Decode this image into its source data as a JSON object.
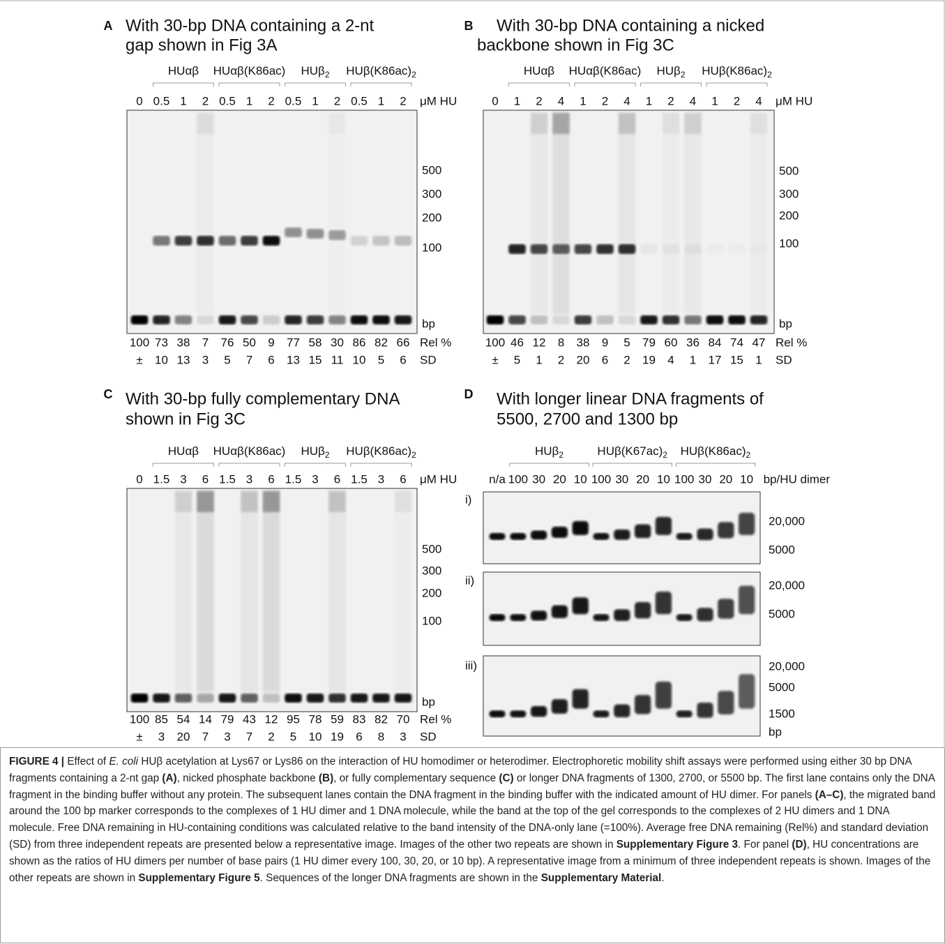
{
  "panels": [
    {
      "letter": "A",
      "title": [
        "With 30-bp DNA containing a 2-nt",
        "gap shown in Fig 3A"
      ],
      "groups": [
        {
          "label": "HUαβ"
        },
        {
          "label": "HUαβ(K86ac)"
        },
        {
          "label": "HUβ",
          "sub": "2"
        },
        {
          "label": "HUβ(K86ac)",
          "sub": "2"
        }
      ],
      "lanes": [
        0,
        0.5,
        1,
        2,
        0.5,
        1,
        2,
        0.5,
        1,
        2,
        0.5,
        1,
        2
      ],
      "unit": "μM HU",
      "markers": [
        "500",
        "300",
        "200",
        "100",
        "bp"
      ],
      "rel_label": "Rel %",
      "rel": [
        100,
        73,
        38,
        7,
        76,
        50,
        9,
        77,
        58,
        30,
        86,
        82,
        66
      ],
      "sd_label": "SD",
      "sd": [
        "±",
        10,
        13,
        3,
        5,
        7,
        6,
        13,
        15,
        11,
        10,
        5,
        6
      ]
    },
    {
      "letter": "B",
      "title": [
        "With 30-bp DNA containing a nicked",
        "backbone shown in Fig 3C"
      ],
      "groups": [
        {
          "label": "HUαβ"
        },
        {
          "label": "HUαβ(K86ac)"
        },
        {
          "label": "HUβ",
          "sub": "2"
        },
        {
          "label": "HUβ(K86ac)",
          "sub": "2"
        }
      ],
      "lanes": [
        0,
        1,
        2,
        4,
        1,
        2,
        4,
        1,
        2,
        4,
        1,
        2,
        4
      ],
      "unit": "μM HU",
      "markers": [
        "500",
        "300",
        "200",
        "100",
        "bp"
      ],
      "rel_label": "Rel %",
      "rel": [
        100,
        46,
        12,
        8,
        38,
        9,
        5,
        79,
        60,
        36,
        84,
        74,
        47
      ],
      "sd_label": "SD",
      "sd": [
        "±",
        5,
        1,
        2,
        20,
        6,
        2,
        19,
        4,
        1,
        17,
        15,
        1
      ]
    },
    {
      "letter": "C",
      "title": [
        "With 30-bp fully complementary DNA",
        "shown in Fig 3C"
      ],
      "groups": [
        {
          "label": "HUαβ"
        },
        {
          "label": "HUαβ(K86ac)"
        },
        {
          "label": "HUβ",
          "sub": "2"
        },
        {
          "label": "HUβ(K86ac)",
          "sub": "2"
        }
      ],
      "lanes": [
        0,
        1.5,
        3,
        6,
        1.5,
        3,
        6,
        1.5,
        3,
        6,
        1.5,
        3,
        6
      ],
      "unit": "μM HU",
      "markers": [
        "500",
        "300",
        "200",
        "100",
        "bp"
      ],
      "rel_label": "Rel %",
      "rel": [
        100,
        85,
        54,
        14,
        79,
        43,
        12,
        95,
        78,
        59,
        83,
        82,
        70
      ],
      "sd_label": "SD",
      "sd": [
        "±",
        3,
        20,
        7,
        3,
        7,
        2,
        5,
        10,
        19,
        6,
        8,
        3
      ]
    },
    {
      "letter": "D",
      "title": [
        "With longer linear DNA fragments of",
        "5500, 2700 and 1300 bp"
      ],
      "groups": [
        {
          "label": "HUβ",
          "sub": "2"
        },
        {
          "label": "HUβ(K67ac)",
          "sub": "2"
        },
        {
          "label": "HUβ(K86ac)",
          "sub": "2"
        }
      ],
      "lanes": [
        "n/a",
        100,
        30,
        20,
        10,
        100,
        30,
        20,
        10,
        100,
        30,
        20,
        10
      ],
      "unit": "bp/HU dimer",
      "gels": [
        {
          "label": "i)",
          "markers": [
            "20,000",
            "5000"
          ]
        },
        {
          "label": "ii)",
          "markers": [
            "20,000",
            "5000"
          ]
        },
        {
          "label": "iii)",
          "markers": [
            "20,000",
            "5000",
            "1500",
            "bp"
          ]
        }
      ]
    }
  ],
  "caption": [
    {
      "text": "FIGURE 4 | ",
      "style": "bold"
    },
    {
      "text": "Effect of "
    },
    {
      "text": "E. coli",
      "style": "italic"
    },
    {
      "text": " HUβ acetylation at Lys67 or Lys86 on the interaction of HU homodimer or heterodimer. Electrophoretic mobility shift assays were performed using either 30 bp DNA fragments containing a 2-nt gap "
    },
    {
      "text": "(A)",
      "style": "bold"
    },
    {
      "text": ", nicked phosphate backbone "
    },
    {
      "text": "(B)",
      "style": "bold"
    },
    {
      "text": ", or fully complementary sequence "
    },
    {
      "text": "(C)",
      "style": "bold"
    },
    {
      "text": " or longer DNA fragments of 1300, 2700, or 5500 bp. The first lane contains only the DNA fragment in the binding buffer without any protein. The subsequent lanes contain the DNA fragment in the binding buffer with the indicated amount of HU dimer. For panels "
    },
    {
      "text": "(A–C)",
      "style": "bold"
    },
    {
      "text": ", the migrated band around the 100 bp marker corresponds to the complexes of 1 HU dimer and 1 DNA molecule, while the band at the top of the gel corresponds to the complexes of 2 HU dimers and 1 DNA molecule. Free DNA remaining in HU-containing conditions was calculated relative to the band intensity of the DNA-only lane (=100%). Average free DNA remaining (Rel%) and standard deviation (SD) from three independent repeats are presented below a representative image. Images of the other two repeats are shown in "
    },
    {
      "text": "Supplementary Figure 3",
      "style": "bold"
    },
    {
      "text": ". For panel "
    },
    {
      "text": "(D)",
      "style": "bold"
    },
    {
      "text": ", HU concentrations are shown as the ratios of HU dimers per number of base pairs (1 HU dimer every 100, 30, 20, or 10 bp). A representative image from a minimum of three independent repeats is shown. Images of the other repeats are shown in "
    },
    {
      "text": "Supplementary Figure 5",
      "style": "bold"
    },
    {
      "text": ". Sequences of the longer DNA fragments are shown in the "
    },
    {
      "text": "Supplementary Material",
      "style": "bold"
    },
    {
      "text": "."
    }
  ]
}
